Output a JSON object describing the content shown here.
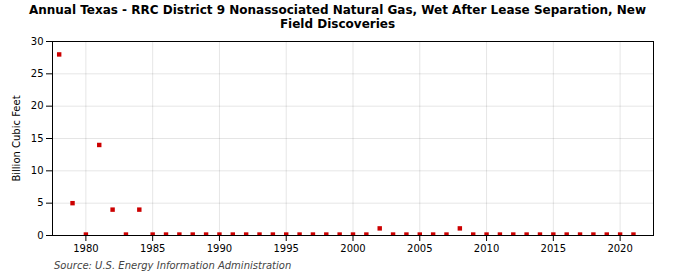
{
  "chart_data": {
    "type": "scatter",
    "title": "Annual Texas - RRC District 9 Nonassociated Natural Gas, Wet After Lease Separation, New\nField Discoveries",
    "ylabel": "Billion Cubic Feet",
    "source": "Source: U.S. Energy Information Administration",
    "color": "#cc0000",
    "marker": "square",
    "x": [
      1978,
      1979,
      1980,
      1981,
      1982,
      1983,
      1984,
      1985,
      1986,
      1987,
      1988,
      1989,
      1990,
      1991,
      1992,
      1993,
      1994,
      1995,
      1996,
      1997,
      1998,
      1999,
      2000,
      2001,
      2002,
      2003,
      2004,
      2005,
      2006,
      2007,
      2008,
      2009,
      2010,
      2011,
      2012,
      2013,
      2014,
      2015,
      2016,
      2017,
      2018,
      2019,
      2020,
      2021
    ],
    "values": [
      28.0,
      5.0,
      0.15,
      14.0,
      4.0,
      0.15,
      4.0,
      0.15,
      0.15,
      0.15,
      0.15,
      0.15,
      0.15,
      0.15,
      0.15,
      0.15,
      0.15,
      0.15,
      0.15,
      0.15,
      0.15,
      0.15,
      0.15,
      0.15,
      1.1,
      0.15,
      0.15,
      0.15,
      0.15,
      0.15,
      1.1,
      0.15,
      0.15,
      0.15,
      0.15,
      0.15,
      0.15,
      0.15,
      0.15,
      0.15,
      0.15,
      0.15,
      0.15,
      0.15
    ],
    "xlim": [
      1977.5,
      2022.5
    ],
    "xticks": [
      1980,
      1985,
      1990,
      1995,
      2000,
      2005,
      2010,
      2015,
      2020
    ],
    "ylim": [
      0,
      30
    ],
    "yticks": [
      0,
      5,
      10,
      15,
      20,
      25,
      30
    ],
    "grid": true
  }
}
